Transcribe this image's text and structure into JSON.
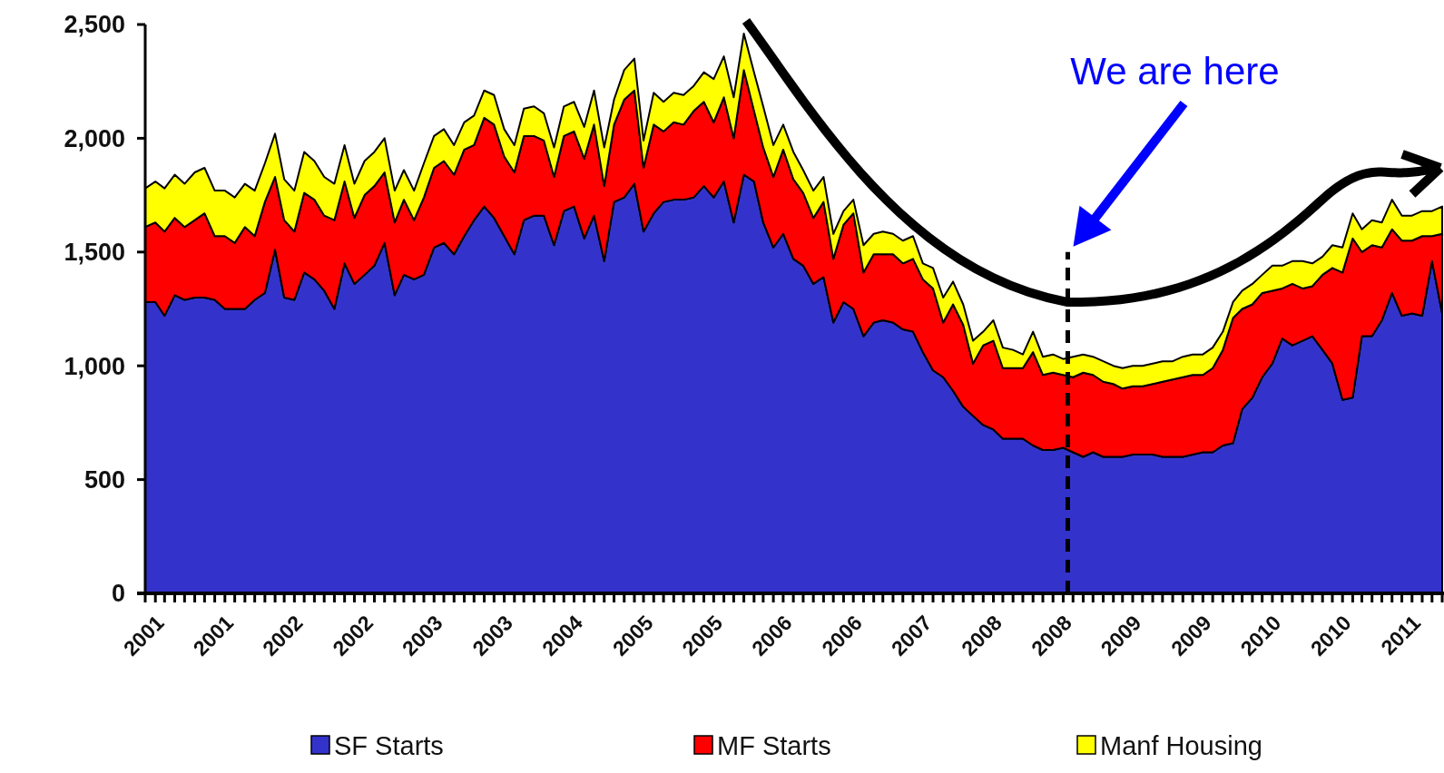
{
  "chart_data": {
    "type": "area",
    "stacked": true,
    "legend": "bottom",
    "x": [
      "2001-01",
      "2001-02",
      "2001-03",
      "2001-04",
      "2001-05",
      "2001-06",
      "2001-07",
      "2001-08",
      "2001-09",
      "2001-10",
      "2001-11",
      "2001-12",
      "2002-01",
      "2002-02",
      "2002-03",
      "2002-04",
      "2002-05",
      "2002-06",
      "2002-07",
      "2002-08",
      "2002-09",
      "2002-10",
      "2002-11",
      "2002-12",
      "2003-01",
      "2003-02",
      "2003-03",
      "2003-04",
      "2003-05",
      "2003-06",
      "2003-07",
      "2003-08",
      "2003-09",
      "2003-10",
      "2003-11",
      "2003-12",
      "2004-01",
      "2004-02",
      "2004-03",
      "2004-04",
      "2004-05",
      "2004-06",
      "2004-07",
      "2004-08",
      "2004-09",
      "2004-10",
      "2004-11",
      "2004-12",
      "2005-01",
      "2005-02",
      "2005-03",
      "2005-04",
      "2005-05",
      "2005-06",
      "2005-07",
      "2005-08",
      "2005-09",
      "2005-10",
      "2005-11",
      "2005-12",
      "2006-01",
      "2006-02",
      "2006-03",
      "2006-04",
      "2006-05",
      "2006-06",
      "2006-07",
      "2006-08",
      "2006-09",
      "2006-10",
      "2006-11",
      "2006-12",
      "2007-01",
      "2007-02",
      "2007-03",
      "2007-04",
      "2007-05",
      "2007-06",
      "2007-07",
      "2007-08",
      "2007-09",
      "2007-10",
      "2007-11",
      "2007-12",
      "2008-01",
      "2008-02",
      "2008-03",
      "2008-04",
      "2008-05",
      "2008-06",
      "2008-07",
      "2008-08",
      "2008-09",
      "2008-10",
      "2008-11",
      "2008-12",
      "2009-01",
      "2009-02",
      "2009-03",
      "2009-04",
      "2009-05",
      "2009-06",
      "2009-07",
      "2009-08",
      "2009-09",
      "2009-10",
      "2009-11",
      "2009-12",
      "2010-01",
      "2010-02",
      "2010-03",
      "2010-04",
      "2010-05",
      "2010-06",
      "2010-07",
      "2010-08",
      "2010-09",
      "2010-10",
      "2010-11",
      "2010-12",
      "2011-01",
      "2011-02",
      "2011-03",
      "2011-04",
      "2011-05",
      "2011-06",
      "2011-07",
      "2011-08",
      "2011-09",
      "2011-10",
      "2011-11"
    ],
    "xlim": [
      "2001-01",
      "2011-11"
    ],
    "xticks": [
      {
        "value": "2001-01",
        "label": "2001"
      },
      {
        "value": "2001-02",
        "label": null
      },
      {
        "value": "2001-03",
        "label": null
      },
      {
        "value": "2001-04",
        "label": null
      },
      {
        "value": "2001-05",
        "label": null
      },
      {
        "value": "2001-06",
        "label": null
      },
      {
        "value": "2001-07",
        "label": null
      },
      {
        "value": "2001-08",
        "label": "2001"
      },
      {
        "value": "2001-09",
        "label": null
      },
      {
        "value": "2001-10",
        "label": null
      },
      {
        "value": "2001-11",
        "label": null
      },
      {
        "value": "2001-12",
        "label": null
      },
      {
        "value": "2002-01",
        "label": null
      },
      {
        "value": "2002-02",
        "label": null
      },
      {
        "value": "2002-03",
        "label": "2002"
      },
      {
        "value": "2002-04",
        "label": null
      },
      {
        "value": "2002-05",
        "label": null
      },
      {
        "value": "2002-06",
        "label": null
      },
      {
        "value": "2002-07",
        "label": null
      },
      {
        "value": "2002-08",
        "label": null
      },
      {
        "value": "2002-09",
        "label": null
      },
      {
        "value": "2002-10",
        "label": "2002"
      },
      {
        "value": "2002-11",
        "label": null
      },
      {
        "value": "2002-12",
        "label": null
      },
      {
        "value": "2003-01",
        "label": null
      },
      {
        "value": "2003-02",
        "label": null
      },
      {
        "value": "2003-03",
        "label": null
      },
      {
        "value": "2003-04",
        "label": null
      },
      {
        "value": "2003-05",
        "label": "2003"
      },
      {
        "value": "2003-06",
        "label": null
      },
      {
        "value": "2003-07",
        "label": null
      },
      {
        "value": "2003-08",
        "label": null
      },
      {
        "value": "2003-09",
        "label": null
      },
      {
        "value": "2003-10",
        "label": null
      },
      {
        "value": "2003-11",
        "label": null
      },
      {
        "value": "2003-12",
        "label": "2003"
      },
      {
        "value": "2004-01",
        "label": null
      },
      {
        "value": "2004-02",
        "label": null
      },
      {
        "value": "2004-03",
        "label": null
      },
      {
        "value": "2004-04",
        "label": null
      },
      {
        "value": "2004-05",
        "label": null
      },
      {
        "value": "2004-06",
        "label": null
      },
      {
        "value": "2004-07",
        "label": "2004"
      },
      {
        "value": "2004-08",
        "label": null
      },
      {
        "value": "2004-09",
        "label": null
      },
      {
        "value": "2004-10",
        "label": null
      },
      {
        "value": "2004-11",
        "label": null
      },
      {
        "value": "2004-12",
        "label": null
      },
      {
        "value": "2005-01",
        "label": null
      },
      {
        "value": "2005-02",
        "label": "2005"
      },
      {
        "value": "2005-03",
        "label": null
      },
      {
        "value": "2005-04",
        "label": null
      },
      {
        "value": "2005-05",
        "label": null
      },
      {
        "value": "2005-06",
        "label": null
      },
      {
        "value": "2005-07",
        "label": null
      },
      {
        "value": "2005-08",
        "label": null
      },
      {
        "value": "2005-09",
        "label": "2005"
      },
      {
        "value": "2005-10",
        "label": null
      },
      {
        "value": "2005-11",
        "label": null
      },
      {
        "value": "2005-12",
        "label": null
      },
      {
        "value": "2006-01",
        "label": null
      },
      {
        "value": "2006-02",
        "label": null
      },
      {
        "value": "2006-03",
        "label": null
      },
      {
        "value": "2006-04",
        "label": "2006"
      },
      {
        "value": "2006-05",
        "label": null
      },
      {
        "value": "2006-06",
        "label": null
      },
      {
        "value": "2006-07",
        "label": null
      },
      {
        "value": "2006-08",
        "label": null
      },
      {
        "value": "2006-09",
        "label": null
      },
      {
        "value": "2006-10",
        "label": null
      },
      {
        "value": "2006-11",
        "label": "2006"
      },
      {
        "value": "2006-12",
        "label": null
      },
      {
        "value": "2007-01",
        "label": null
      },
      {
        "value": "2007-02",
        "label": null
      },
      {
        "value": "2007-03",
        "label": null
      },
      {
        "value": "2007-04",
        "label": null
      },
      {
        "value": "2007-05",
        "label": null
      },
      {
        "value": "2007-06",
        "label": "2007"
      },
      {
        "value": "2007-07",
        "label": null
      },
      {
        "value": "2007-08",
        "label": null
      },
      {
        "value": "2007-09",
        "label": null
      },
      {
        "value": "2007-10",
        "label": null
      },
      {
        "value": "2007-11",
        "label": null
      },
      {
        "value": "2007-12",
        "label": null
      },
      {
        "value": "2008-01",
        "label": "2008"
      },
      {
        "value": "2008-02",
        "label": null
      },
      {
        "value": "2008-03",
        "label": null
      },
      {
        "value": "2008-04",
        "label": null
      },
      {
        "value": "2008-05",
        "label": null
      },
      {
        "value": "2008-06",
        "label": null
      },
      {
        "value": "2008-07",
        "label": null
      },
      {
        "value": "2008-08",
        "label": "2008"
      },
      {
        "value": "2008-09",
        "label": null
      },
      {
        "value": "2008-10",
        "label": null
      },
      {
        "value": "2008-11",
        "label": null
      },
      {
        "value": "2008-12",
        "label": null
      },
      {
        "value": "2009-01",
        "label": null
      },
      {
        "value": "2009-02",
        "label": null
      },
      {
        "value": "2009-03",
        "label": "2009"
      },
      {
        "value": "2009-04",
        "label": null
      },
      {
        "value": "2009-05",
        "label": null
      },
      {
        "value": "2009-06",
        "label": null
      },
      {
        "value": "2009-07",
        "label": null
      },
      {
        "value": "2009-08",
        "label": null
      },
      {
        "value": "2009-09",
        "label": null
      },
      {
        "value": "2009-10",
        "label": "2009"
      },
      {
        "value": "2009-11",
        "label": null
      },
      {
        "value": "2009-12",
        "label": null
      },
      {
        "value": "2010-01",
        "label": null
      },
      {
        "value": "2010-02",
        "label": null
      },
      {
        "value": "2010-03",
        "label": null
      },
      {
        "value": "2010-04",
        "label": null
      },
      {
        "value": "2010-05",
        "label": "2010"
      },
      {
        "value": "2010-06",
        "label": null
      },
      {
        "value": "2010-07",
        "label": null
      },
      {
        "value": "2010-08",
        "label": null
      },
      {
        "value": "2010-09",
        "label": null
      },
      {
        "value": "2010-10",
        "label": null
      },
      {
        "value": "2010-11",
        "label": null
      },
      {
        "value": "2010-12",
        "label": "2010"
      },
      {
        "value": "2011-01",
        "label": null
      },
      {
        "value": "2011-02",
        "label": null
      },
      {
        "value": "2011-03",
        "label": null
      },
      {
        "value": "2011-04",
        "label": null
      },
      {
        "value": "2011-05",
        "label": null
      },
      {
        "value": "2011-06",
        "label": null
      },
      {
        "value": "2011-07",
        "label": "2011"
      },
      {
        "value": "2011-08",
        "label": null
      },
      {
        "value": "2011-09",
        "label": null
      },
      {
        "value": "2011-10",
        "label": null
      },
      {
        "value": "2011-11",
        "label": null
      }
    ],
    "ylim": [
      0,
      2500
    ],
    "yticks": [
      0,
      500,
      {
        "value": 1000,
        "label": "1,000"
      },
      {
        "value": 1500,
        "label": "1,500"
      },
      {
        "value": 2000,
        "label": "2,000"
      },
      {
        "value": 2500,
        "label": "2,500"
      }
    ],
    "ref_lines": [
      {
        "axis": "x",
        "value": "2008-09-15",
        "color": "#000000",
        "line_style": "dashed"
      }
    ],
    "annotations": [
      "We are here"
    ],
    "series": [
      {
        "name": "SF Starts",
        "color": "#3333cc",
        "values": [
          1280,
          1280,
          1220,
          1310,
          1290,
          1300,
          1300,
          1290,
          1250,
          1250,
          1250,
          1290,
          1320,
          1510,
          1300,
          1290,
          1410,
          1380,
          1330,
          1250,
          1450,
          1360,
          1400,
          1440,
          1540,
          1310,
          1400,
          1380,
          1400,
          1520,
          1540,
          1490,
          1570,
          1640,
          1700,
          1650,
          1570,
          1490,
          1640,
          1660,
          1660,
          1530,
          1680,
          1700,
          1560,
          1660,
          1460,
          1720,
          1740,
          1800,
          1590,
          1670,
          1720,
          1730,
          1730,
          1740,
          1790,
          1740,
          1810,
          1630,
          1840,
          1810,
          1630,
          1520,
          1580,
          1470,
          1440,
          1360,
          1390,
          1190,
          1280,
          1250,
          1130,
          1190,
          1200,
          1190,
          1160,
          1150,
          1060,
          980,
          950,
          890,
          820,
          780,
          740,
          720,
          680,
          680,
          680,
          650,
          630,
          630,
          640,
          620,
          600,
          620,
          600,
          600,
          600,
          610,
          610,
          610,
          600,
          600,
          600,
          610,
          620,
          620,
          650,
          660,
          810,
          860,
          950,
          1010,
          1120,
          1090,
          1110,
          1130,
          1070,
          1010,
          850,
          860,
          1130,
          1130,
          1200,
          1320,
          1220,
          1230,
          1220,
          1460,
          1230
        ]
      },
      {
        "name": "MF Starts",
        "color": "#ff0000",
        "values": [
          330,
          350,
          370,
          340,
          320,
          340,
          370,
          280,
          320,
          290,
          360,
          280,
          400,
          320,
          340,
          300,
          350,
          350,
          330,
          390,
          360,
          290,
          350,
          350,
          310,
          320,
          330,
          260,
          340,
          350,
          360,
          350,
          380,
          330,
          390,
          410,
          350,
          360,
          370,
          350,
          330,
          300,
          330,
          330,
          350,
          400,
          330,
          340,
          430,
          410,
          280,
          390,
          310,
          340,
          330,
          380,
          370,
          330,
          370,
          370,
          460,
          310,
          330,
          310,
          370,
          350,
          320,
          290,
          330,
          280,
          340,
          420,
          280,
          300,
          290,
          300,
          290,
          320,
          320,
          360,
          240,
          380,
          360,
          230,
          350,
          390,
          310,
          310,
          310,
          410,
          330,
          340,
          320,
          330,
          370,
          340,
          330,
          320,
          300,
          300,
          300,
          310,
          330,
          340,
          350,
          350,
          340,
          370,
          420,
          550,
          440,
          410,
          370,
          320,
          220,
          270,
          230,
          220,
          330,
          420,
          560,
          700,
          370,
          400,
          320,
          280,
          330,
          320,
          350,
          110,
          350
        ]
      },
      {
        "name": "Manf Housing",
        "color": "#ffff00",
        "values": [
          170,
          180,
          190,
          190,
          190,
          210,
          200,
          200,
          200,
          200,
          190,
          200,
          170,
          190,
          180,
          180,
          180,
          170,
          170,
          160,
          160,
          150,
          150,
          150,
          150,
          140,
          130,
          130,
          150,
          140,
          140,
          130,
          120,
          130,
          120,
          130,
          120,
          120,
          120,
          130,
          120,
          130,
          130,
          130,
          140,
          150,
          170,
          110,
          130,
          140,
          120,
          140,
          130,
          130,
          130,
          110,
          130,
          190,
          180,
          180,
          160,
          170,
          180,
          140,
          110,
          120,
          100,
          120,
          110,
          110,
          60,
          60,
          120,
          90,
          100,
          90,
          100,
          100,
          70,
          90,
          110,
          100,
          90,
          100,
          60,
          90,
          90,
          80,
          60,
          90,
          80,
          80,
          70,
          90,
          80,
          80,
          90,
          80,
          90,
          90,
          90,
          90,
          90,
          80,
          90,
          90,
          90,
          90,
          80,
          70,
          80,
          90,
          80,
          110,
          100,
          100,
          120,
          100,
          80,
          100,
          110,
          110,
          100,
          110,
          110,
          130,
          110,
          110,
          110,
          110,
          120
        ]
      }
    ]
  }
}
